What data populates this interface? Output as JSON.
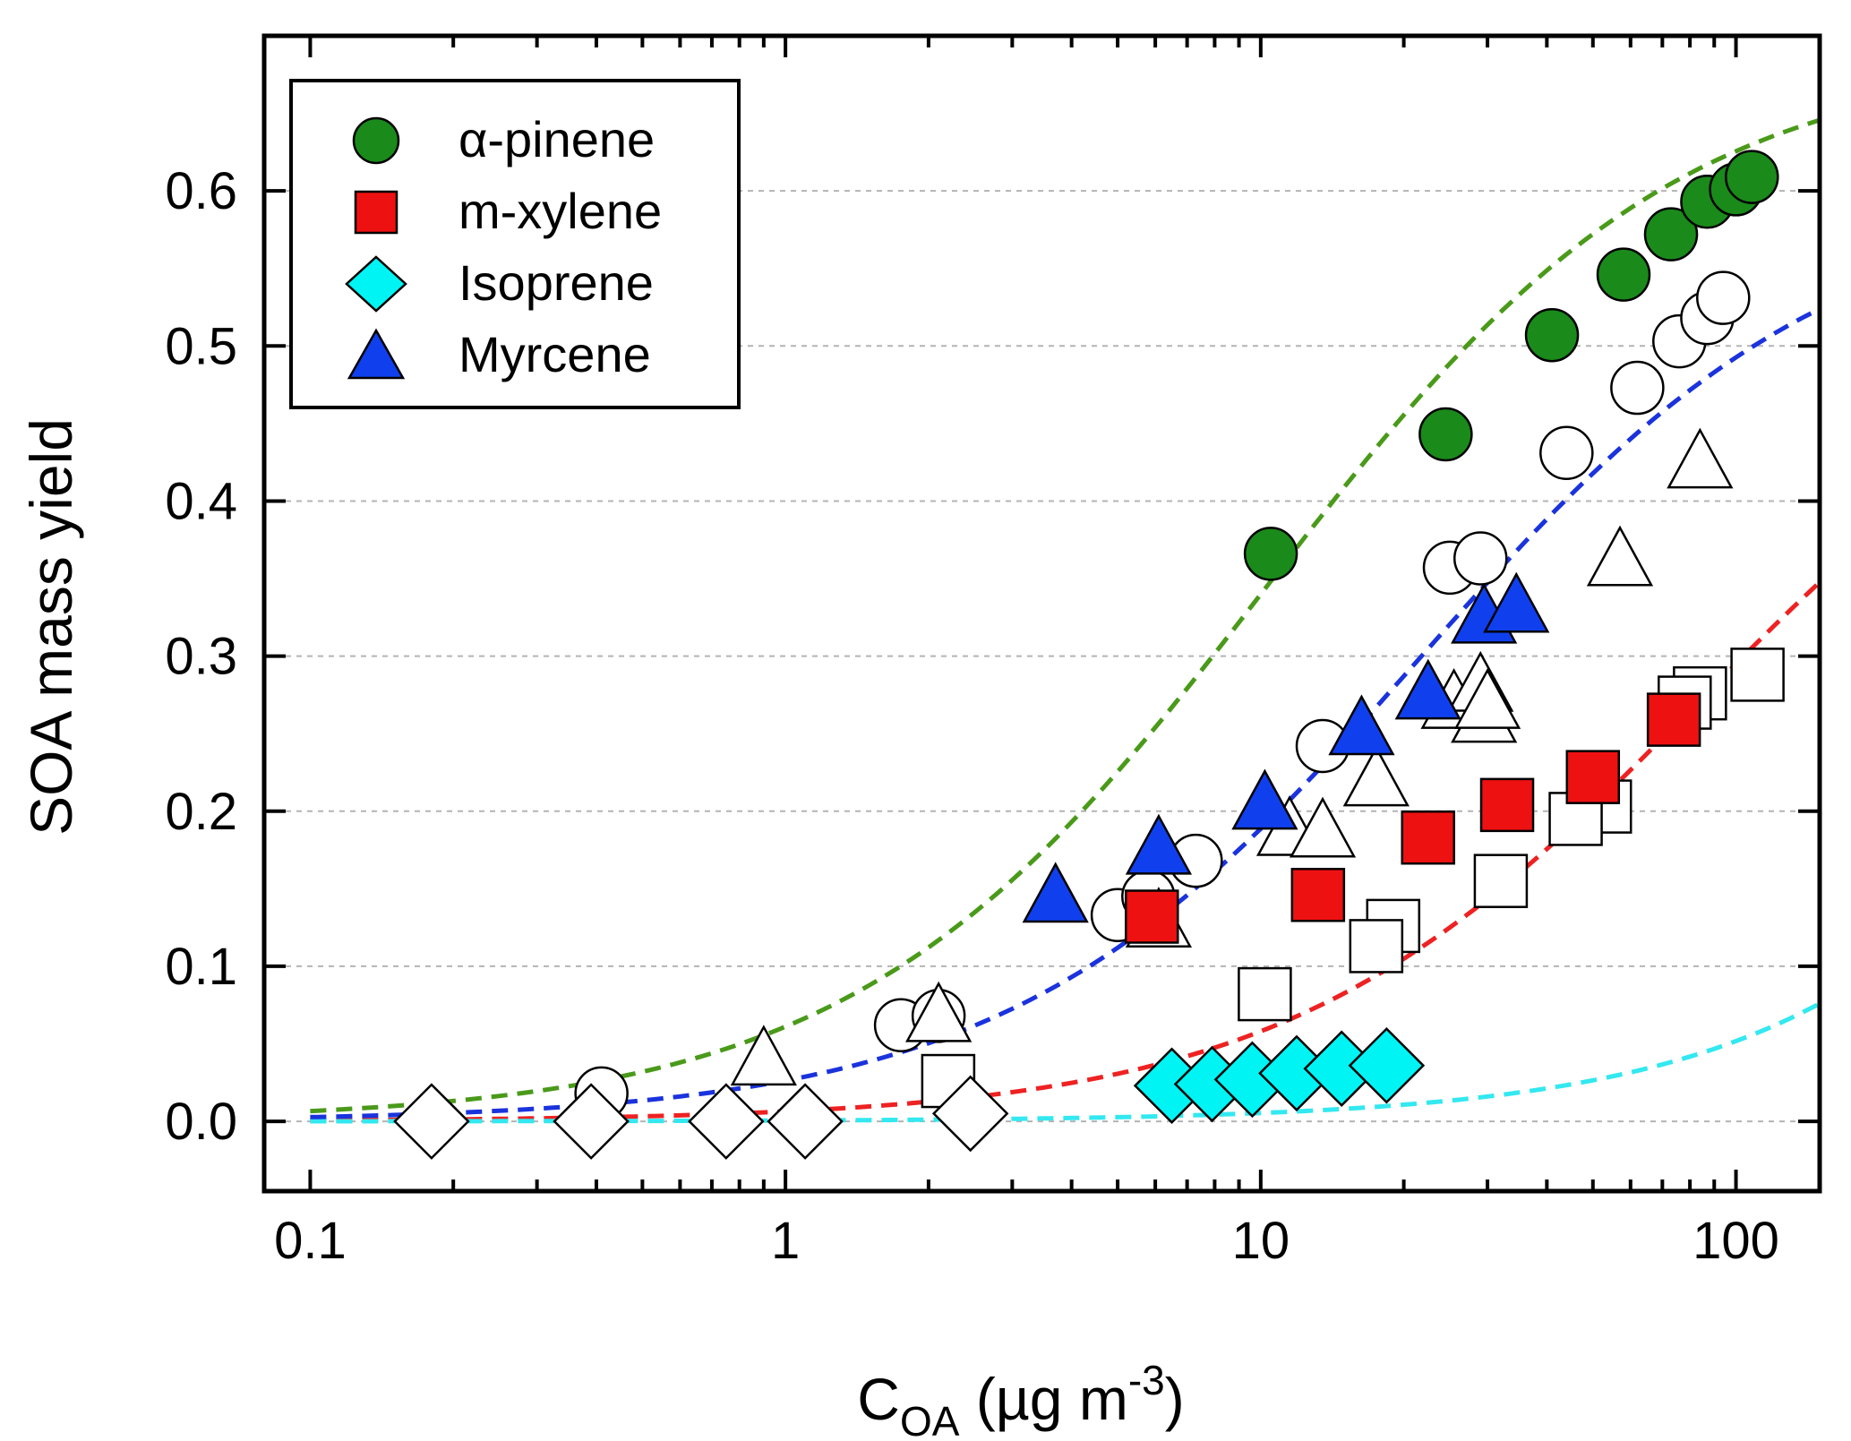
{
  "chart_data": {
    "type": "scatter",
    "xscale": "log",
    "xlim": [
      0.08,
      150
    ],
    "ylim": [
      -0.045,
      0.7
    ],
    "xticks": [
      {
        "v": 0.1,
        "label": "0.1"
      },
      {
        "v": 1,
        "label": "1"
      },
      {
        "v": 10,
        "label": "10"
      },
      {
        "v": 100,
        "label": "100"
      }
    ],
    "yticks": [
      {
        "v": 0.0,
        "label": "0.0"
      },
      {
        "v": 0.1,
        "label": "0.1"
      },
      {
        "v": 0.2,
        "label": "0.2"
      },
      {
        "v": 0.3,
        "label": "0.3"
      },
      {
        "v": 0.4,
        "label": "0.4"
      },
      {
        "v": 0.5,
        "label": "0.5"
      },
      {
        "v": 0.6,
        "label": "0.6"
      }
    ],
    "grid": "horizontal dashed",
    "legend_position": "top-left",
    "xlabel": {
      "main": "C",
      "sub": "OA",
      "unit": " (µg m",
      "exp": "-3",
      "close": ")"
    },
    "ylabel": "SOA mass yield",
    "series": [
      {
        "name": "α-pinene",
        "marker": "circle",
        "color": "#1a8a1a",
        "filled": [
          [
            10.5,
            0.366
          ],
          [
            24.5,
            0.443
          ],
          [
            41,
            0.507
          ],
          [
            58,
            0.546
          ],
          [
            73,
            0.572
          ],
          [
            87,
            0.593
          ],
          [
            100,
            0.601
          ],
          [
            108,
            0.609
          ]
        ],
        "open": [
          [
            0.41,
            0.018
          ],
          [
            1.75,
            0.062
          ],
          [
            2.1,
            0.068
          ],
          [
            5,
            0.133
          ],
          [
            5.8,
            0.145
          ],
          [
            7.3,
            0.168
          ],
          [
            13.5,
            0.242
          ],
          [
            25,
            0.357
          ],
          [
            29,
            0.363
          ],
          [
            44,
            0.431
          ],
          [
            62,
            0.473
          ],
          [
            76,
            0.503
          ],
          [
            87,
            0.518
          ],
          [
            94,
            0.531
          ]
        ]
      },
      {
        "name": "m-xylene",
        "marker": "square",
        "color": "#ee1111",
        "filled": [
          [
            5.9,
            0.132
          ],
          [
            13.2,
            0.146
          ],
          [
            22.5,
            0.183
          ],
          [
            33,
            0.204
          ],
          [
            50,
            0.222
          ],
          [
            74,
            0.259
          ]
        ],
        "open": [
          [
            2.2,
            0.026
          ],
          [
            10.2,
            0.082
          ],
          [
            19,
            0.126
          ],
          [
            17.5,
            0.113
          ],
          [
            32,
            0.155
          ],
          [
            53,
            0.203
          ],
          [
            46,
            0.195
          ],
          [
            84,
            0.276
          ],
          [
            78,
            0.27
          ],
          [
            111,
            0.288
          ]
        ]
      },
      {
        "name": "Isoprene",
        "marker": "diamond",
        "color": "#00f4f4",
        "filled": [
          [
            6.5,
            0.023
          ],
          [
            7.9,
            0.024
          ],
          [
            9.6,
            0.027
          ],
          [
            11.9,
            0.031
          ],
          [
            14.8,
            0.034
          ],
          [
            18.4,
            0.036
          ]
        ],
        "open": [
          [
            0.18,
            0.0
          ],
          [
            0.39,
            0.0
          ],
          [
            0.75,
            0.0
          ],
          [
            1.1,
            0.0
          ],
          [
            2.45,
            0.005
          ]
        ]
      },
      {
        "name": "Myrcene",
        "marker": "triangle",
        "color": "#1040ee",
        "filled": [
          [
            3.7,
            0.145
          ],
          [
            6.1,
            0.176
          ],
          [
            10.2,
            0.205
          ],
          [
            16.3,
            0.253
          ],
          [
            22.5,
            0.276
          ],
          [
            29.5,
            0.325
          ],
          [
            34.5,
            0.332
          ]
        ],
        "open": [
          [
            0.9,
            0.04
          ],
          [
            2.1,
            0.068
          ],
          [
            6.1,
            0.129
          ],
          [
            11.5,
            0.188
          ],
          [
            13.5,
            0.187
          ],
          [
            17.5,
            0.22
          ],
          [
            25.5,
            0.27
          ],
          [
            29,
            0.281
          ],
          [
            29.5,
            0.261
          ],
          [
            30,
            0.27
          ],
          [
            57,
            0.362
          ],
          [
            84,
            0.425
          ]
        ]
      }
    ],
    "fits": [
      {
        "name": "α-pinene fit",
        "color": "#4a9a1a",
        "c_star": 10.3,
        "alpha": 0.69
      },
      {
        "name": "m-xylene fit",
        "color": "#ee2222",
        "c_star": 83,
        "alpha": 0.54
      },
      {
        "name": "Isoprene fit",
        "color": "#33e8f0",
        "c_star": 2200,
        "alpha": 1.19
      },
      {
        "name": "Myrcene fit",
        "color": "#1a33dd",
        "c_star": 21.8,
        "alpha": 0.6
      }
    ]
  }
}
